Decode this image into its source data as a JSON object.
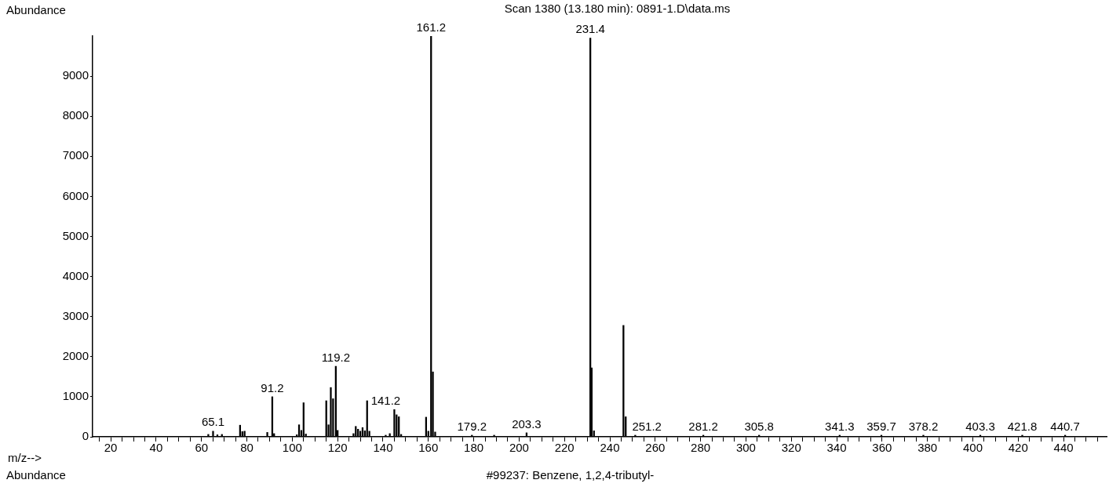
{
  "chart_data": {
    "type": "bar",
    "title": "Scan 1380 (13.180 min): 0891-1.D\\data.ms",
    "ylabel": "Abundance",
    "xlabel": "m/z-->",
    "x": [
      63,
      65.1,
      67,
      69,
      77,
      78,
      79,
      89,
      91.2,
      92,
      102,
      103,
      104,
      105,
      106,
      115,
      116,
      117,
      118,
      119.2,
      120,
      127,
      128,
      129,
      130,
      131,
      132,
      133,
      134,
      141.2,
      143,
      145,
      146,
      147,
      148,
      159,
      160,
      161.2,
      162,
      163,
      179.2,
      189,
      203.3,
      231.4,
      232,
      233,
      246,
      247,
      251.2,
      281.2,
      305.8,
      341.3,
      359.7,
      378.2,
      403.3,
      421.8,
      440.7
    ],
    "values": [
      60,
      140,
      50,
      60,
      290,
      130,
      140,
      110,
      1000,
      80,
      50,
      300,
      160,
      850,
      70,
      900,
      300,
      1230,
      950,
      1760,
      160,
      80,
      260,
      190,
      140,
      230,
      150,
      900,
      140,
      40,
      80,
      680,
      550,
      500,
      60,
      490,
      140,
      10000,
      1620,
      120,
      40,
      40,
      100,
      9950,
      1720,
      150,
      2780,
      500,
      40,
      40,
      40,
      40,
      40,
      40,
      40,
      40,
      40
    ],
    "color": "#000000",
    "xlim": [
      12,
      459
    ],
    "xticks": [
      {
        "value": 15,
        "label": null
      },
      20,
      {
        "value": 25,
        "label": null
      },
      {
        "value": 30,
        "label": null
      },
      {
        "value": 35,
        "label": null
      },
      40,
      {
        "value": 45,
        "label": null
      },
      {
        "value": 50,
        "label": null
      },
      {
        "value": 55,
        "label": null
      },
      60,
      {
        "value": 65,
        "label": null
      },
      {
        "value": 70,
        "label": null
      },
      {
        "value": 75,
        "label": null
      },
      80,
      {
        "value": 85,
        "label": null
      },
      {
        "value": 90,
        "label": null
      },
      {
        "value": 95,
        "label": null
      },
      100,
      {
        "value": 105,
        "label": null
      },
      {
        "value": 110,
        "label": null
      },
      {
        "value": 115,
        "label": null
      },
      120,
      {
        "value": 125,
        "label": null
      },
      {
        "value": 130,
        "label": null
      },
      {
        "value": 135,
        "label": null
      },
      140,
      {
        "value": 145,
        "label": null
      },
      {
        "value": 150,
        "label": null
      },
      {
        "value": 155,
        "label": null
      },
      160,
      {
        "value": 165,
        "label": null
      },
      {
        "value": 170,
        "label": null
      },
      {
        "value": 175,
        "label": null
      },
      180,
      {
        "value": 185,
        "label": null
      },
      {
        "value": 190,
        "label": null
      },
      {
        "value": 195,
        "label": null
      },
      200,
      {
        "value": 205,
        "label": null
      },
      {
        "value": 210,
        "label": null
      },
      {
        "value": 215,
        "label": null
      },
      220,
      {
        "value": 225,
        "label": null
      },
      {
        "value": 230,
        "label": null
      },
      {
        "value": 235,
        "label": null
      },
      240,
      {
        "value": 245,
        "label": null
      },
      {
        "value": 250,
        "label": null
      },
      {
        "value": 255,
        "label": null
      },
      260,
      {
        "value": 265,
        "label": null
      },
      {
        "value": 270,
        "label": null
      },
      {
        "value": 275,
        "label": null
      },
      280,
      {
        "value": 285,
        "label": null
      },
      {
        "value": 290,
        "label": null
      },
      {
        "value": 295,
        "label": null
      },
      300,
      {
        "value": 305,
        "label": null
      },
      {
        "value": 310,
        "label": null
      },
      {
        "value": 315,
        "label": null
      },
      320,
      {
        "value": 325,
        "label": null
      },
      {
        "value": 330,
        "label": null
      },
      {
        "value": 335,
        "label": null
      },
      340,
      {
        "value": 345,
        "label": null
      },
      {
        "value": 350,
        "label": null
      },
      {
        "value": 355,
        "label": null
      },
      360,
      {
        "value": 365,
        "label": null
      },
      {
        "value": 370,
        "label": null
      },
      {
        "value": 375,
        "label": null
      },
      380,
      {
        "value": 385,
        "label": null
      },
      {
        "value": 390,
        "label": null
      },
      {
        "value": 395,
        "label": null
      },
      400,
      {
        "value": 405,
        "label": null
      },
      {
        "value": 410,
        "label": null
      },
      {
        "value": 415,
        "label": null
      },
      420,
      {
        "value": 425,
        "label": null
      },
      {
        "value": 430,
        "label": null
      },
      {
        "value": 435,
        "label": null
      },
      440,
      {
        "value": 445,
        "label": null
      },
      {
        "value": 450,
        "label": null
      },
      {
        "value": 455,
        "label": null
      }
    ],
    "ylim": [
      0,
      10000
    ],
    "yticks": [
      0,
      1000,
      2000,
      3000,
      4000,
      5000,
      6000,
      7000,
      8000,
      9000
    ],
    "grid": false,
    "legend": false,
    "annotations": [
      {
        "text": "65.1",
        "x": 65.1,
        "y": 140
      },
      {
        "text": "91.2",
        "x": 91.2,
        "y": 1000
      },
      {
        "text": "119.2",
        "x": 119.2,
        "y": 1760
      },
      {
        "text": "141.2",
        "x": 141.2,
        "y": 40
      },
      {
        "text": "161.2",
        "x": 161.2,
        "y": 10000
      },
      {
        "text": "179.2",
        "x": 179.2,
        "y": 40
      },
      {
        "text": "203.3",
        "x": 203.3,
        "y": 100
      },
      {
        "text": "231.4",
        "x": 231.4,
        "y": 9950
      },
      {
        "text": "251.2",
        "x": 251.2,
        "y": 40
      },
      {
        "text": "281.2",
        "x": 281.2,
        "y": 40
      },
      {
        "text": "305.8",
        "x": 305.8,
        "y": 40
      },
      {
        "text": "341.3",
        "x": 341.3,
        "y": 40
      },
      {
        "text": "359.7",
        "x": 359.7,
        "y": 40
      },
      {
        "text": "378.2",
        "x": 378.2,
        "y": 40
      },
      {
        "text": "403.3",
        "x": 403.3,
        "y": 40
      },
      {
        "text": "421.8",
        "x": 421.8,
        "y": 40
      },
      {
        "text": "440.7",
        "x": 440.7,
        "y": 40
      },
      "Abundance",
      "#99237: Benzene, 1,2,4-tributyl-"
    ]
  }
}
